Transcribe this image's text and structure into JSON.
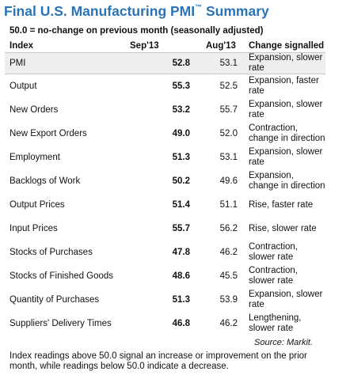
{
  "title": "Final U.S. Manufacturing PMI",
  "title_trademark": "™",
  "title_suffix": "Summary",
  "subtitle": "50.0 = no-change on previous month (seasonally adjusted)",
  "columns": {
    "index": "Index",
    "current": "Sep'13",
    "previous": "Aug'13",
    "change": "Change signalled"
  },
  "rows": [
    {
      "index": "PMI",
      "current": "52.8",
      "previous": "53.1",
      "change": "Expansion, slower rate"
    },
    {
      "index": "Output",
      "current": "55.3",
      "previous": "52.5",
      "change": "Expansion, faster rate"
    },
    {
      "index": "New Orders",
      "current": "53.2",
      "previous": "55.7",
      "change": "Expansion, slower rate"
    },
    {
      "index": "New Export Orders",
      "current": "49.0",
      "previous": "52.0",
      "change": "Contraction, change in direction"
    },
    {
      "index": "Employment",
      "current": "51.3",
      "previous": "53.1",
      "change": "Expansion, slower rate"
    },
    {
      "index": "Backlogs of Work",
      "current": "50.2",
      "previous": "49.6",
      "change": "Expansion, change in direction"
    },
    {
      "index": "Output Prices",
      "current": "51.4",
      "previous": "51.1",
      "change": "Rise, faster rate"
    },
    {
      "index": "Input Prices",
      "current": "55.7",
      "previous": "56.2",
      "change": "Rise, slower rate"
    },
    {
      "index": "Stocks of Purchases",
      "current": "47.8",
      "previous": "46.2",
      "change": "Contraction, slower rate"
    },
    {
      "index": "Stocks of Finished Goods",
      "current": "48.6",
      "previous": "45.5",
      "change": "Contraction, slower rate"
    },
    {
      "index": "Quantity of Purchases",
      "current": "51.3",
      "previous": "53.9",
      "change": "Expansion, slower rate"
    },
    {
      "index": "Suppliers' Delivery Times",
      "current": "46.8",
      "previous": "46.2",
      "change": "Lengthening, slower rate"
    }
  ],
  "source": "Source: Markit.",
  "note": "Index readings above 50.0 signal an increase or improvement on the prior month, while readings below 50.0 indicate a decrease.",
  "colors": {
    "title": "#2a73b5",
    "highlight_row": "#eeeeee",
    "rule": "#c8c8c8"
  }
}
